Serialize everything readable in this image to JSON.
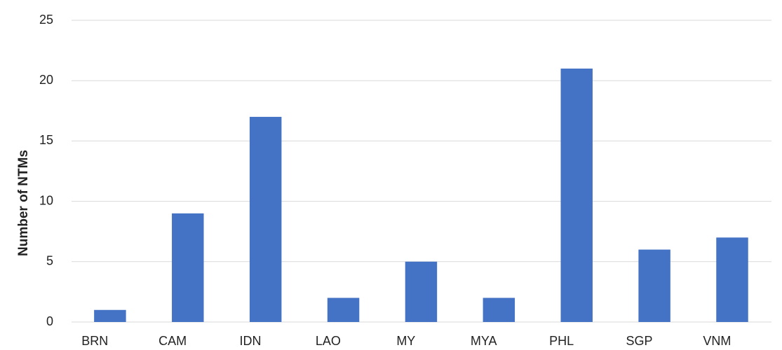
{
  "chart_data": {
    "type": "bar",
    "y_label": "Number of NTMs",
    "categories": [
      "BRN",
      "CAM",
      "IDN",
      "LAO",
      "MY",
      "MYA",
      "PHL",
      "SGP",
      "VNM"
    ],
    "values": [
      1,
      9,
      17,
      2,
      5,
      2,
      21,
      6,
      7
    ],
    "color": "#4472c4",
    "ylim": [
      0,
      25
    ],
    "yticks": [
      0,
      5,
      10,
      15,
      20,
      25
    ],
    "grid": true
  }
}
